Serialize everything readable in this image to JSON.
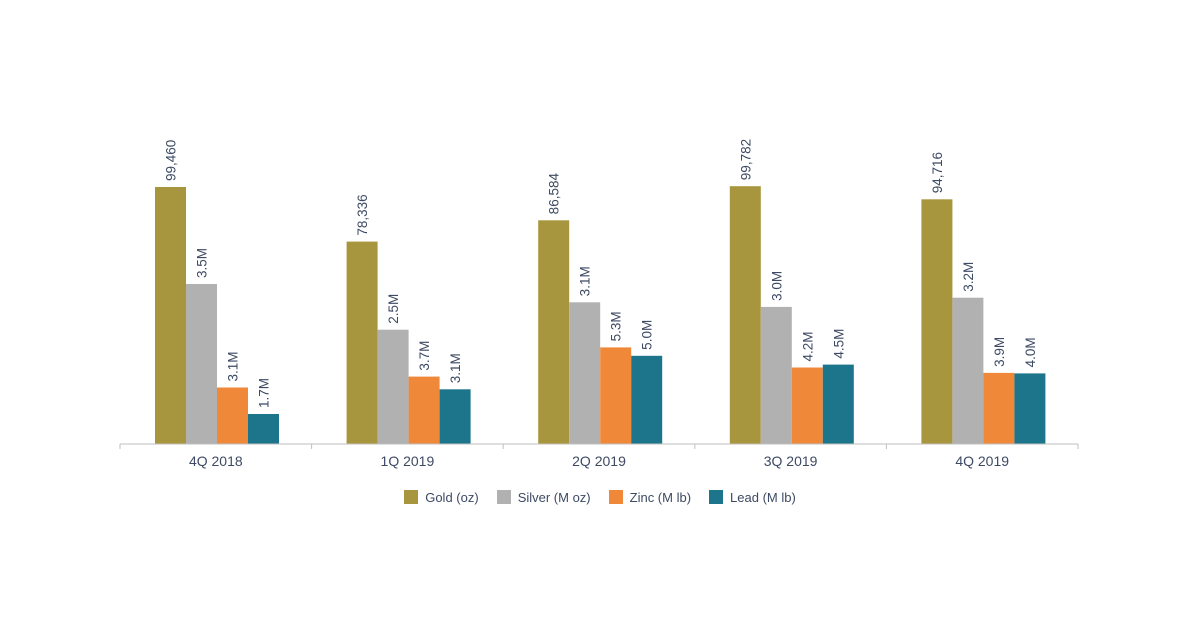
{
  "chart_data": {
    "type": "bar",
    "categories": [
      "4Q 2018",
      "1Q 2019",
      "2Q 2019",
      "3Q 2019",
      "4Q 2019"
    ],
    "series": [
      {
        "name": "Gold (oz)",
        "color": "#a8963e",
        "values": [
          99460,
          78336,
          86584,
          99782,
          94716
        ],
        "labels": [
          "99,460",
          "78,336",
          "86,584",
          "99,782",
          "94,716"
        ]
      },
      {
        "name": "Silver (M oz)",
        "color": "#b1b1b1",
        "values": [
          3.5,
          2.5,
          3.1,
          3.0,
          3.2
        ],
        "labels": [
          "3.5M",
          "2.5M",
          "3.1M",
          "3.0M",
          "3.2M"
        ]
      },
      {
        "name": "Zinc (M lb)",
        "color": "#f0883a",
        "values": [
          3.1,
          3.7,
          5.3,
          4.2,
          3.9
        ],
        "labels": [
          "3.1M",
          "3.7M",
          "5.3M",
          "4.2M",
          "3.9M"
        ]
      },
      {
        "name": "Lead (M lb)",
        "color": "#1d758c",
        "values": [
          1.7,
          3.1,
          5.0,
          4.5,
          4.0
        ],
        "labels": [
          "1.7M",
          "3.1M",
          "5.0M",
          "4.5M",
          "4.0M"
        ]
      }
    ],
    "title": "",
    "xlabel": "",
    "ylabel": "",
    "grid": false,
    "legend_position": "bottom"
  }
}
